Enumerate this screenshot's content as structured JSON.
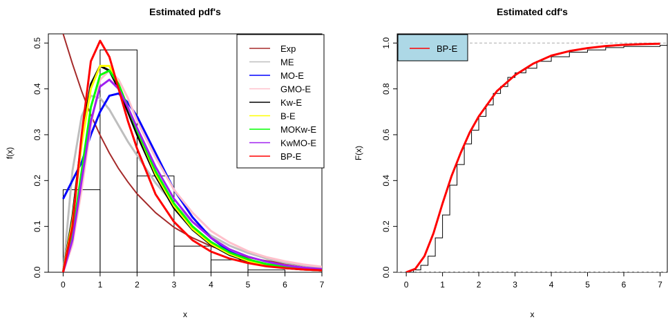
{
  "chart_data": [
    {
      "type": "line",
      "title": "Estimated pdf's",
      "xlabel": "x",
      "ylabel": "f(x)",
      "xlim": [
        0,
        7
      ],
      "ylim": [
        0,
        0.52
      ],
      "xticks": [
        "0",
        "1",
        "2",
        "3",
        "4",
        "5",
        "6",
        "7"
      ],
      "yticks": [
        "0.0",
        "0.1",
        "0.2",
        "0.3",
        "0.4",
        "0.5"
      ],
      "legend_position": "top-right",
      "histogram": {
        "bins": [
          [
            0,
            1
          ],
          [
            1,
            2
          ],
          [
            2,
            3
          ],
          [
            3,
            4
          ],
          [
            4,
            5
          ],
          [
            5,
            6
          ],
          [
            6,
            7
          ]
        ],
        "density": [
          0.18,
          0.485,
          0.21,
          0.057,
          0.027,
          0.005,
          0.0
        ]
      },
      "x": [
        0,
        0.25,
        0.5,
        0.75,
        1,
        1.25,
        1.5,
        1.75,
        2,
        2.5,
        3,
        3.5,
        4,
        4.5,
        5,
        5.5,
        6,
        6.5,
        7
      ],
      "series": [
        {
          "name": "Exp",
          "color": "#a52a2a",
          "values": [
            0.52,
            0.455,
            0.395,
            0.343,
            0.299,
            0.26,
            0.226,
            0.197,
            0.171,
            0.13,
            0.098,
            0.075,
            0.057,
            0.043,
            0.032,
            0.025,
            0.019,
            0.014,
            0.011
          ]
        },
        {
          "name": "ME",
          "color": "#bebebe",
          "values": [
            0.0,
            0.22,
            0.34,
            0.385,
            0.38,
            0.355,
            0.32,
            0.285,
            0.255,
            0.195,
            0.148,
            0.11,
            0.08,
            0.058,
            0.042,
            0.03,
            0.021,
            0.015,
            0.01
          ]
        },
        {
          "name": "MO-E",
          "color": "#0000ff",
          "values": [
            0.16,
            0.2,
            0.24,
            0.3,
            0.35,
            0.385,
            0.39,
            0.37,
            0.34,
            0.26,
            0.18,
            0.12,
            0.075,
            0.045,
            0.028,
            0.017,
            0.01,
            0.006,
            0.004
          ]
        },
        {
          "name": "GMO-E",
          "color": "#ffc0cb",
          "values": [
            0.0,
            0.06,
            0.18,
            0.32,
            0.42,
            0.44,
            0.42,
            0.38,
            0.33,
            0.25,
            0.18,
            0.13,
            0.09,
            0.065,
            0.046,
            0.033,
            0.024,
            0.017,
            0.012
          ]
        },
        {
          "name": "Kw-E",
          "color": "#000000",
          "values": [
            0.0,
            0.12,
            0.29,
            0.41,
            0.45,
            0.44,
            0.4,
            0.35,
            0.3,
            0.21,
            0.14,
            0.093,
            0.06,
            0.038,
            0.024,
            0.015,
            0.009,
            0.006,
            0.004
          ]
        },
        {
          "name": "B-E",
          "color": "#ffff00",
          "values": [
            0.0,
            0.11,
            0.28,
            0.4,
            0.45,
            0.45,
            0.41,
            0.36,
            0.31,
            0.215,
            0.145,
            0.095,
            0.062,
            0.04,
            0.025,
            0.016,
            0.01,
            0.006,
            0.004
          ]
        },
        {
          "name": "MOKw-E",
          "color": "#00ff00",
          "values": [
            0.0,
            0.08,
            0.22,
            0.36,
            0.43,
            0.44,
            0.41,
            0.36,
            0.31,
            0.22,
            0.15,
            0.1,
            0.066,
            0.043,
            0.028,
            0.018,
            0.012,
            0.008,
            0.005
          ]
        },
        {
          "name": "KwMO-E",
          "color": "#a020f0",
          "values": [
            0.0,
            0.07,
            0.2,
            0.33,
            0.405,
            0.42,
            0.4,
            0.36,
            0.315,
            0.23,
            0.16,
            0.11,
            0.075,
            0.05,
            0.034,
            0.023,
            0.015,
            0.01,
            0.007
          ]
        },
        {
          "name": "BP-E",
          "color": "#ff0000",
          "values": [
            0.0,
            0.1,
            0.3,
            0.46,
            0.505,
            0.47,
            0.4,
            0.33,
            0.27,
            0.17,
            0.11,
            0.07,
            0.045,
            0.03,
            0.02,
            0.013,
            0.009,
            0.006,
            0.004
          ]
        }
      ]
    },
    {
      "type": "line",
      "title": "Estimated cdf's",
      "xlabel": "x",
      "ylabel": "F(x)",
      "xlim": [
        -0.25,
        7.2
      ],
      "ylim": [
        0,
        1.04
      ],
      "xticks": [
        "0",
        "1",
        "2",
        "3",
        "4",
        "5",
        "6",
        "7"
      ],
      "yticks": [
        "0.0",
        "0.2",
        "0.4",
        "0.6",
        "0.8",
        "1.0"
      ],
      "legend_position": "top-left",
      "reference_lines": [
        0,
        1
      ],
      "empirical": {
        "x": [
          0,
          0.2,
          0.4,
          0.6,
          0.8,
          1.0,
          1.2,
          1.4,
          1.6,
          1.8,
          2.0,
          2.2,
          2.4,
          2.6,
          2.8,
          3.0,
          3.3,
          3.6,
          4.0,
          4.5,
          5.0,
          5.5,
          6.0,
          7.0
        ],
        "y": [
          0.0,
          0.01,
          0.03,
          0.07,
          0.15,
          0.25,
          0.38,
          0.47,
          0.56,
          0.62,
          0.68,
          0.73,
          0.78,
          0.81,
          0.85,
          0.87,
          0.89,
          0.92,
          0.94,
          0.96,
          0.97,
          0.98,
          0.985,
          0.99
        ]
      },
      "series": [
        {
          "name": "BP-E",
          "color": "#ff0000",
          "x": [
            0,
            0.25,
            0.5,
            0.75,
            1,
            1.25,
            1.5,
            1.75,
            2,
            2.5,
            3,
            3.5,
            4,
            4.5,
            5,
            5.5,
            6,
            6.5,
            7
          ],
          "values": [
            0.0,
            0.015,
            0.07,
            0.17,
            0.3,
            0.42,
            0.52,
            0.61,
            0.68,
            0.79,
            0.86,
            0.91,
            0.945,
            0.965,
            0.978,
            0.987,
            0.992,
            0.995,
            0.997
          ]
        }
      ]
    }
  ]
}
